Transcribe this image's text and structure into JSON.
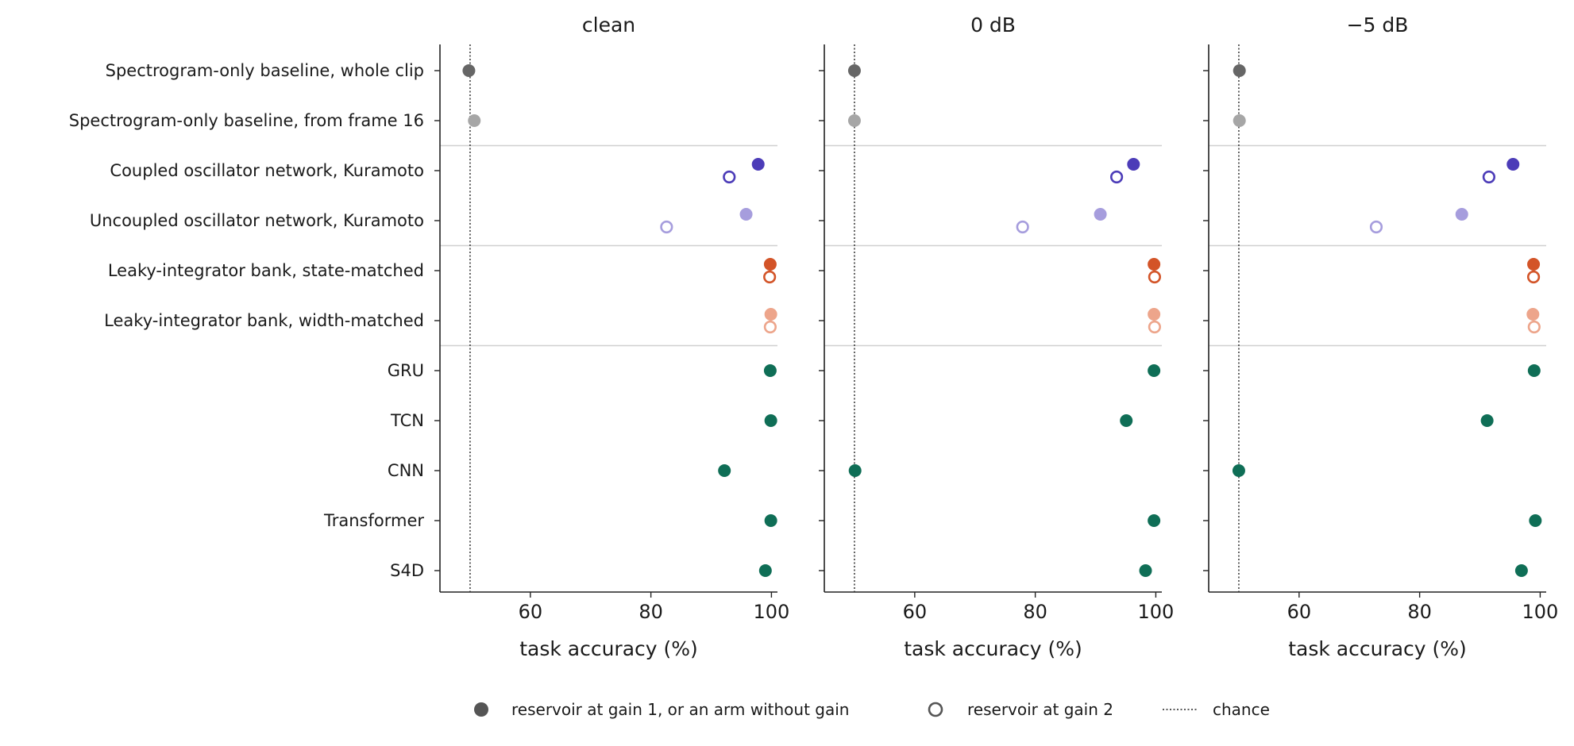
{
  "chart_data": {
    "type": "scatter",
    "rows": [
      "Spectrogram-only baseline, whole clip",
      "Spectrogram-only baseline, from frame 16",
      "Coupled oscillator network, Kuramoto",
      "Uncoupled oscillator network, Kuramoto",
      "Leaky-integrator bank, state-matched",
      "Leaky-integrator bank, width-matched",
      "GRU",
      "TCN",
      "CNN",
      "Transformer",
      "S4D"
    ],
    "row_colors": [
      "#666666",
      "#a6a6a6",
      "#4c3cb8",
      "#a69ddd",
      "#d35428",
      "#eda58b",
      "#0f6e56",
      "#0f6e56",
      "#0f6e56",
      "#0f6e56",
      "#0f6e56"
    ],
    "group_separators_after_rows": [
      1,
      3,
      5
    ],
    "xlim": [
      45,
      101
    ],
    "xticks": [
      60,
      80,
      100
    ],
    "xlabel": "task accuracy (%)",
    "chance": 50,
    "panels": [
      {
        "title": "clean",
        "gain1": [
          49.8,
          50.7,
          97.8,
          95.8,
          99.8,
          99.9,
          99.8,
          99.9,
          92.2,
          99.9,
          99.0
        ],
        "gain2": [
          null,
          null,
          93.0,
          82.6,
          99.7,
          99.8,
          null,
          null,
          null,
          null,
          null
        ]
      },
      {
        "title": "0 dB",
        "gain1": [
          50.0,
          50.0,
          96.3,
          90.8,
          99.7,
          99.7,
          99.7,
          95.1,
          50.1,
          99.7,
          98.3
        ],
        "gain2": [
          null,
          null,
          93.5,
          77.9,
          99.8,
          99.8,
          null,
          null,
          null,
          null,
          null
        ]
      },
      {
        "title": "−5 dB",
        "gain1": [
          50.1,
          50.1,
          95.5,
          87.0,
          98.9,
          98.8,
          99.0,
          91.2,
          50.0,
          99.2,
          96.9
        ],
        "gain2": [
          null,
          null,
          91.5,
          72.8,
          98.9,
          99.0,
          null,
          null,
          null,
          null,
          null
        ]
      }
    ],
    "legend": {
      "gain1": "reservoir at gain 1, or an arm without gain",
      "gain2": "reservoir at gain 2",
      "chance": "chance"
    }
  }
}
